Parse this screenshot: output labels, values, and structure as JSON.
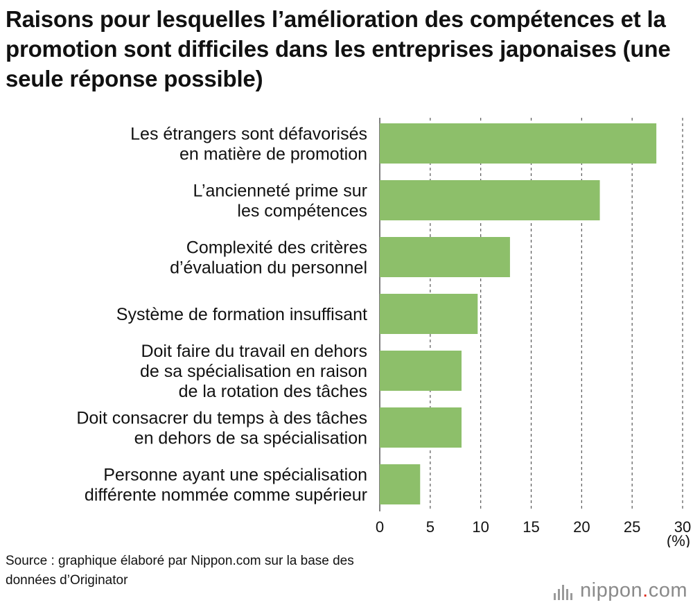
{
  "chart_data": {
    "type": "bar",
    "orientation": "horizontal",
    "title": "Raisons pour lesquelles l’amélioration des compétences et la promotion sont difficiles dans les entreprises japonaises (une seule réponse possible)",
    "categories": [
      [
        "Les étrangers sont défavorisés",
        "en matière de promotion"
      ],
      [
        "L’ancienneté prime sur",
        "les compétences"
      ],
      [
        "Complexité des critères",
        "d’évaluation du personnel"
      ],
      [
        "Système de formation insuffisant"
      ],
      [
        "Doit faire du travail en dehors",
        "de sa spécialisation en raison",
        "de la rotation des tâches"
      ],
      [
        "Doit consacrer du temps à des tâches",
        "en dehors de sa spécialisation"
      ],
      [
        "Personne ayant une spécialisation",
        "différente nommée comme supérieur"
      ]
    ],
    "values": [
      27.4,
      21.8,
      12.9,
      9.7,
      8.1,
      8.1,
      4.0
    ],
    "xlim": [
      0,
      30
    ],
    "xticks": [
      0,
      5,
      10,
      15,
      20,
      25,
      30
    ],
    "xlabel": "(%)",
    "grid": "vertical-dashed",
    "bar_color": "#8dbf6a",
    "grid_color": "#555555"
  },
  "source": "Source : graphique élaboré par Nippon.com sur la base des\ndonnées d’Originator",
  "logo": {
    "name": "nippon",
    "dot": ".",
    "suffix": "com",
    "dot_color": "#e0281a"
  }
}
